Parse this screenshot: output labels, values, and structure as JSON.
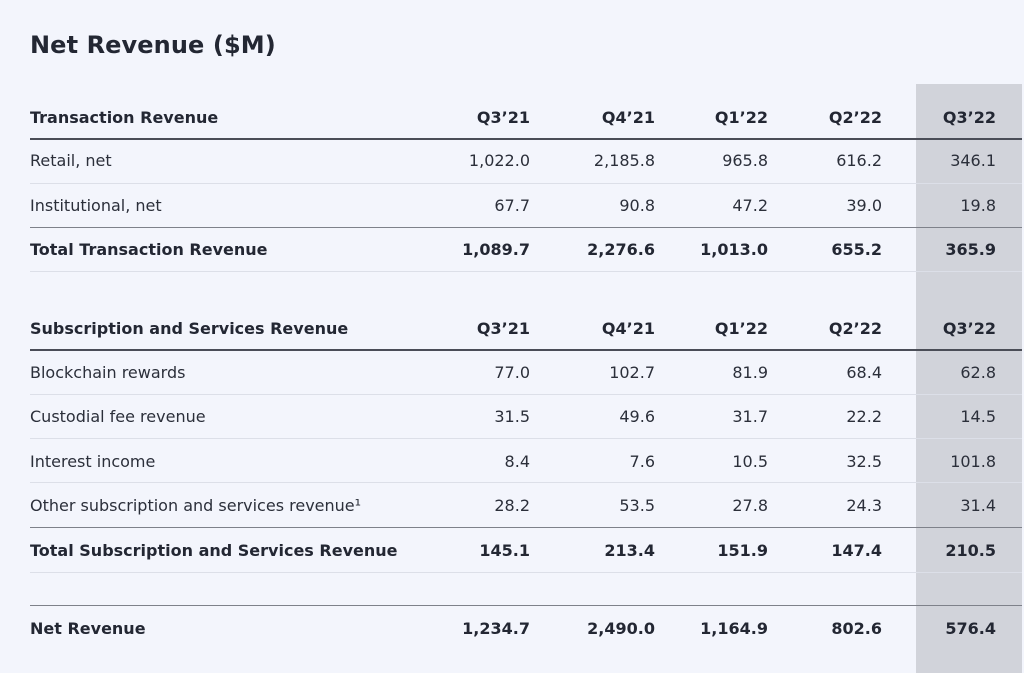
{
  "title": "Net Revenue ($M)",
  "columns": [
    "Q3’21",
    "Q4’21",
    "Q1’22",
    "Q2’22",
    "Q3’22"
  ],
  "highlighted_column": "Q3’22",
  "sections": [
    {
      "header": "Transaction Revenue",
      "rows": [
        {
          "label": "Retail, net",
          "values": [
            "1,022.0",
            "2,185.8",
            "965.8",
            "616.2",
            "346.1"
          ]
        },
        {
          "label": "Institutional, net",
          "values": [
            "67.7",
            "90.8",
            "47.2",
            "39.0",
            "19.8"
          ]
        }
      ],
      "total": {
        "label": "Total Transaction Revenue",
        "values": [
          "1,089.7",
          "2,276.6",
          "1,013.0",
          "655.2",
          "365.9"
        ]
      }
    },
    {
      "header": "Subscription and Services Revenue",
      "rows": [
        {
          "label": "Blockchain rewards",
          "values": [
            "77.0",
            "102.7",
            "81.9",
            "68.4",
            "62.8"
          ]
        },
        {
          "label": "Custodial fee revenue",
          "values": [
            "31.5",
            "49.6",
            "31.7",
            "22.2",
            "14.5"
          ]
        },
        {
          "label": "Interest income",
          "values": [
            "8.4",
            "7.6",
            "10.5",
            "32.5",
            "101.8"
          ]
        },
        {
          "label": "Other subscription and services revenue¹",
          "values": [
            "28.2",
            "53.5",
            "27.8",
            "24.3",
            "31.4"
          ]
        }
      ],
      "total": {
        "label": "Total Subscription and Services Revenue",
        "values": [
          "145.1",
          "213.4",
          "151.9",
          "147.4",
          "210.5"
        ]
      }
    }
  ],
  "net_revenue": {
    "label": "Net Revenue",
    "values": [
      "1,234.7",
      "2,490.0",
      "1,164.9",
      "802.6",
      "576.4"
    ]
  },
  "colors": {
    "background": "#f3f5fc",
    "highlight": "#d1d3da",
    "text": "#2b2f3a"
  }
}
